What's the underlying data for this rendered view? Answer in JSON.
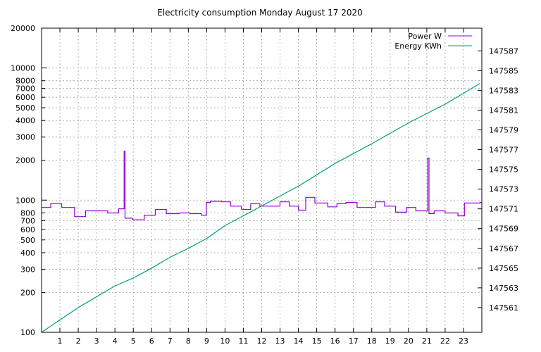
{
  "chart_data": {
    "type": "line",
    "title": "Electricity consumption Monday August 17 2020",
    "x_ticks": [
      "1",
      "2",
      "3",
      "4",
      "5",
      "6",
      "7",
      "8",
      "9",
      "10",
      "11",
      "12",
      "13",
      "14",
      "15",
      "16",
      "17",
      "18",
      "19",
      "20",
      "21",
      "22",
      "23"
    ],
    "xlim": [
      0,
      24
    ],
    "y_left": {
      "scale": "log",
      "lim": [
        100,
        20000
      ],
      "ticks": [
        100,
        200,
        300,
        400,
        500,
        600,
        700,
        800,
        1000,
        2000,
        3000,
        4000,
        5000,
        6000,
        7000,
        8000,
        10000,
        20000
      ]
    },
    "y_right": {
      "scale": "linear",
      "lim": [
        147558.5,
        147589.3
      ],
      "ticks": [
        147561,
        147563,
        147565,
        147567,
        147569,
        147571,
        147573,
        147575,
        147577,
        147579,
        147581,
        147583,
        147585,
        147587
      ]
    },
    "grid": true,
    "legend_position": "top-right",
    "series": [
      {
        "name": "Power W",
        "axis": "left",
        "color": "#9400d3",
        "style": "steps",
        "points": [
          [
            0.0,
            880
          ],
          [
            0.5,
            940
          ],
          [
            1.1,
            880
          ],
          [
            1.8,
            750
          ],
          [
            2.4,
            830
          ],
          [
            3.6,
            800
          ],
          [
            4.2,
            860
          ],
          [
            4.5,
            860
          ],
          [
            4.5,
            2350
          ],
          [
            4.55,
            2350
          ],
          [
            4.55,
            730
          ],
          [
            4.95,
            710
          ],
          [
            5.6,
            770
          ],
          [
            6.2,
            850
          ],
          [
            6.8,
            790
          ],
          [
            7.5,
            800
          ],
          [
            8.1,
            790
          ],
          [
            8.7,
            770
          ],
          [
            8.98,
            960
          ],
          [
            9.2,
            980
          ],
          [
            9.8,
            970
          ],
          [
            10.3,
            900
          ],
          [
            10.9,
            850
          ],
          [
            11.4,
            940
          ],
          [
            11.9,
            900
          ],
          [
            13.0,
            970
          ],
          [
            13.5,
            900
          ],
          [
            14.0,
            840
          ],
          [
            14.4,
            1050
          ],
          [
            14.9,
            950
          ],
          [
            15.6,
            890
          ],
          [
            16.1,
            940
          ],
          [
            16.6,
            960
          ],
          [
            17.2,
            880
          ],
          [
            18.2,
            970
          ],
          [
            18.7,
            900
          ],
          [
            19.3,
            810
          ],
          [
            19.9,
            880
          ],
          [
            20.4,
            830
          ],
          [
            21.05,
            830
          ],
          [
            21.05,
            2080
          ],
          [
            21.12,
            2080
          ],
          [
            21.12,
            790
          ],
          [
            21.4,
            830
          ],
          [
            22.0,
            800
          ],
          [
            22.7,
            760
          ],
          [
            23.05,
            950
          ],
          [
            23.9,
            960
          ]
        ]
      },
      {
        "name": "Energy KWh",
        "axis": "right",
        "color": "#009e73",
        "style": "line",
        "points": [
          [
            0.0,
            147558.5
          ],
          [
            2.0,
            147561.0
          ],
          [
            4.0,
            147563.2
          ],
          [
            5.0,
            147564.0
          ],
          [
            6.0,
            147565.0
          ],
          [
            7.0,
            147566.1
          ],
          [
            8.0,
            147567.0
          ],
          [
            9.0,
            147568.0
          ],
          [
            10.0,
            147569.3
          ],
          [
            12.0,
            147571.3
          ],
          [
            14.0,
            147573.3
          ],
          [
            16.0,
            147575.6
          ],
          [
            18.0,
            147577.6
          ],
          [
            20.0,
            147579.7
          ],
          [
            22.0,
            147581.6
          ],
          [
            23.9,
            147583.7
          ]
        ]
      }
    ]
  }
}
